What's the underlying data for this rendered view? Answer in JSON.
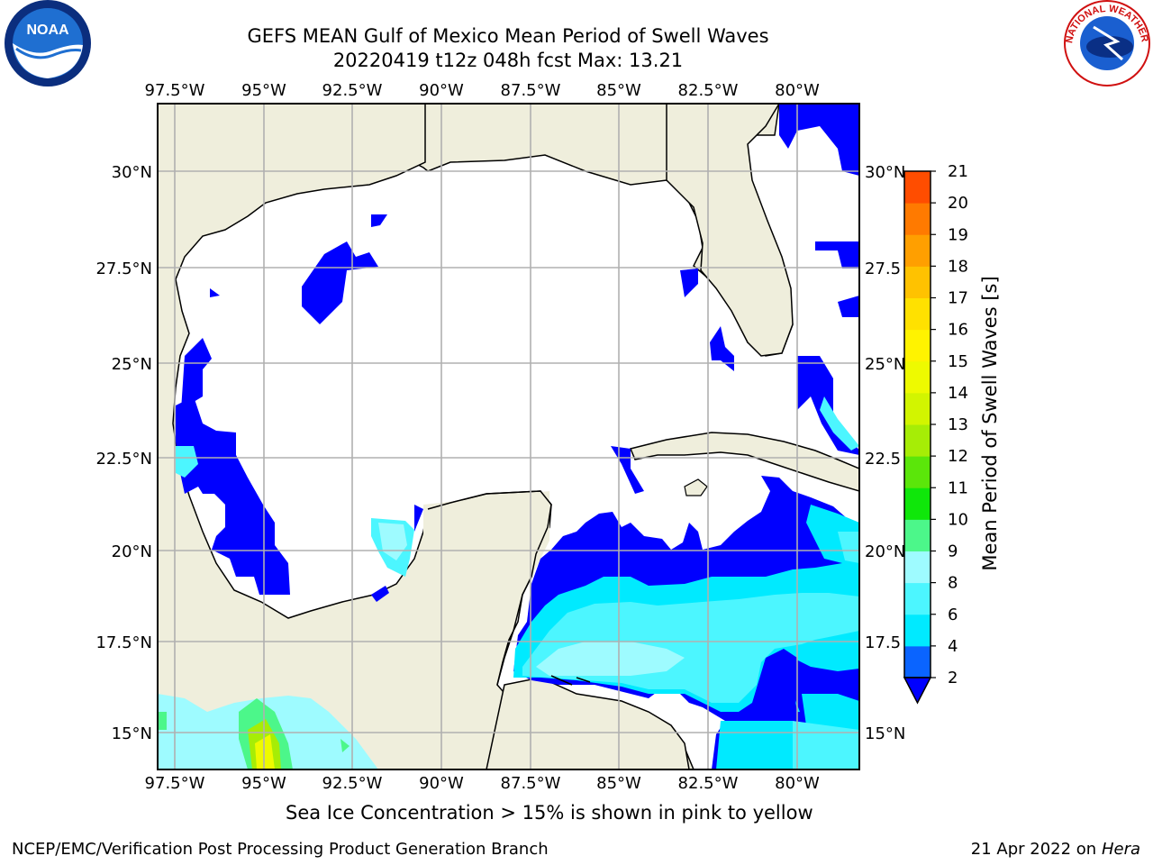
{
  "header": {
    "title_line1": "GEFS MEAN Gulf of Mexico Mean Period of Swell Waves",
    "title_line2": "20220419 t12z 048h fcst   Max: 13.21"
  },
  "logos": {
    "left_name": "noaa-logo",
    "left_text": "NOAA",
    "right_name": "nws-logo",
    "right_text": "NATIONAL WEATHER SERVICE"
  },
  "map": {
    "lon_labels": [
      "97.5°W",
      "95°W",
      "92.5°W",
      "90°W",
      "87.5°W",
      "85°W",
      "82.5°W",
      "80°W"
    ],
    "lat_labels_left": [
      "30°N",
      "27.5°N",
      "25°N",
      "22.5°N",
      "20°N",
      "17.5°N",
      "15°N"
    ],
    "lat_labels_right": [
      "30°N",
      "27.5",
      "25°N",
      "22.5",
      "20°N",
      "17.5",
      "15°N"
    ],
    "land_color": "#efeedc",
    "water_color": "#ffffff",
    "grid_color": "#b0b0b0"
  },
  "colorbar": {
    "label": "Mean Period of Swell Waves [s]",
    "ticks": [
      "2",
      "4",
      "6",
      "8",
      "9",
      "10",
      "11",
      "12",
      "13",
      "14",
      "15",
      "16",
      "17",
      "18",
      "19",
      "20",
      "21"
    ],
    "colors": [
      "#0a64ff",
      "#00eaff",
      "#4cf6ff",
      "#9efbff",
      "#4cf78a",
      "#0fe70a",
      "#5be60a",
      "#a6ed06",
      "#d2f500",
      "#eefa00",
      "#fff300",
      "#ffe100",
      "#ffc200",
      "#ff9f00",
      "#ff7a00",
      "#ff4d00",
      "#ff1a00"
    ],
    "under_color": "#0000ff"
  },
  "caption": "Sea Ice Concentration > 15% is shown in pink to yellow",
  "footer": {
    "left": "NCEP/EMC/Verification Post Processing Product Generation Branch",
    "right_date": "21 Apr 2022 on ",
    "right_host": "Hera"
  }
}
